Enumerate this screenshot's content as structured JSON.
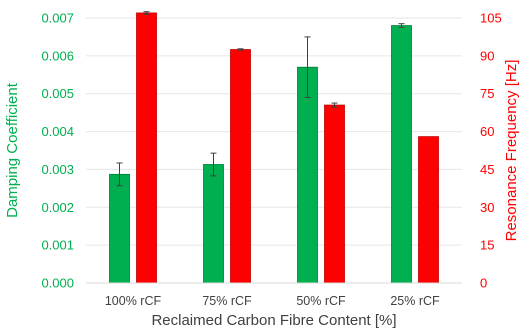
{
  "chart_data": {
    "type": "bar",
    "title": "",
    "xlabel": "Reclaimed Carbon Fibre Content [%]",
    "categories": [
      "100% rCF",
      "75% rCF",
      "50% rCF",
      "25% rCF"
    ],
    "grid": true,
    "y_left": {
      "label": "Damping Coefficient",
      "lim": [
        0,
        0.007
      ],
      "ticks": [
        "0.000",
        "0.001",
        "0.002",
        "0.003",
        "0.004",
        "0.005",
        "0.006",
        "0.007"
      ],
      "tick_values": [
        0,
        0.001,
        0.002,
        0.003,
        0.004,
        0.005,
        0.006,
        0.007
      ],
      "color": "#00b050"
    },
    "y_right": {
      "label": "Resonance Frequency [Hz]",
      "lim": [
        0,
        105
      ],
      "ticks": [
        "0",
        "15",
        "30",
        "45",
        "60",
        "75",
        "90",
        "105"
      ],
      "tick_values": [
        0,
        15,
        30,
        45,
        60,
        75,
        90,
        105
      ],
      "color": "#ff0000"
    },
    "series": [
      {
        "axis": "left",
        "color": "#00b050",
        "values": [
          0.00287,
          0.00313,
          0.0057,
          0.0068
        ],
        "error": [
          0.0003,
          0.0003,
          0.0008,
          5e-05
        ]
      },
      {
        "axis": "right",
        "color": "#ff0000",
        "values": [
          107,
          92.5,
          70.5,
          58
        ],
        "error": [
          0.5,
          0.3,
          0.8,
          0
        ]
      }
    ]
  }
}
